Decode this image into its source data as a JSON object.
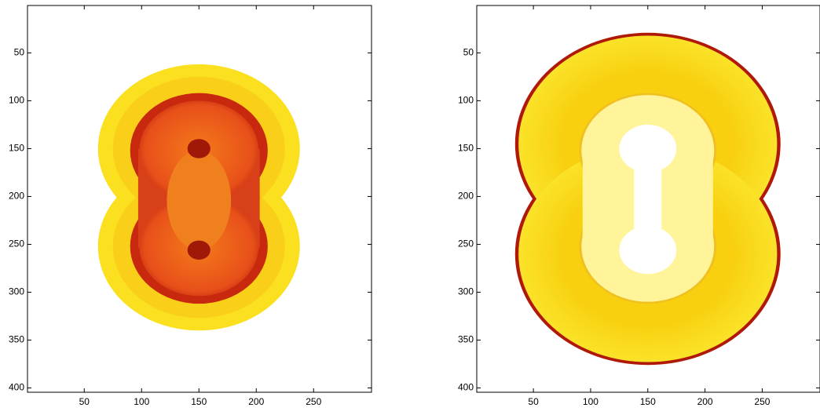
{
  "chart_data": [
    {
      "type": "image",
      "xlim": [
        0.5,
        300.5
      ],
      "ylim": [
        0.5,
        404.5
      ],
      "xticks": [
        50,
        100,
        150,
        200,
        250
      ],
      "yticks": [
        50,
        100,
        150,
        200,
        250,
        300,
        350,
        400
      ]
    },
    {
      "type": "image",
      "xlim": [
        0.5,
        300.5
      ],
      "ylim": [
        0.5,
        404.5
      ],
      "xticks": [
        50,
        100,
        150,
        200,
        250
      ],
      "yticks": [
        50,
        100,
        150,
        200,
        250,
        300,
        350,
        400
      ]
    }
  ]
}
